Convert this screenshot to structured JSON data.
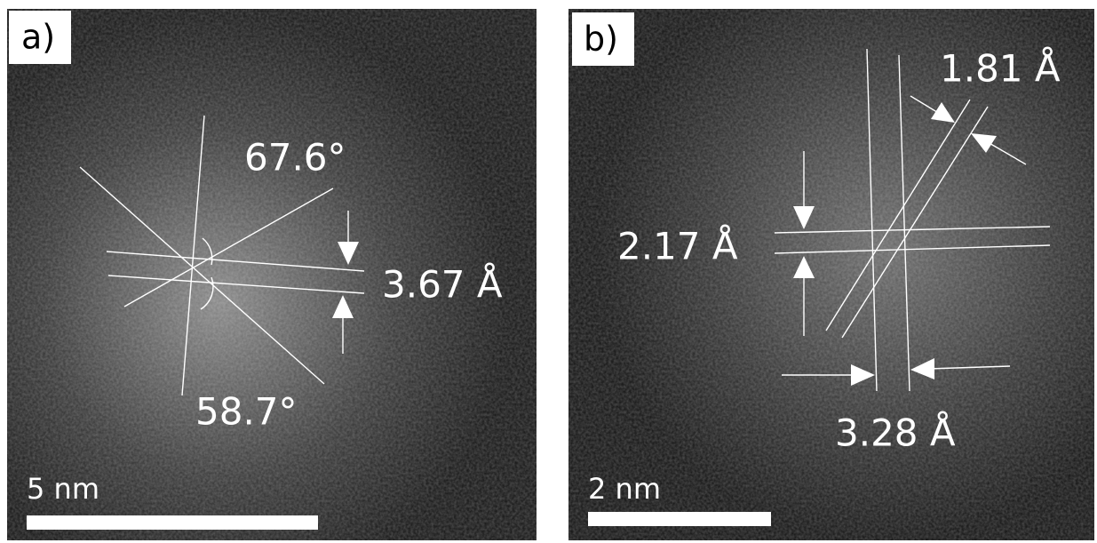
{
  "panels": [
    {
      "label": "a)",
      "annotations": [
        "67.6°",
        "3.67 Å",
        "58.7°"
      ],
      "scale_bar": "5 nm"
    },
    {
      "label": "b)",
      "annotations": [
        "1.81 Å",
        "2.17 Å",
        "3.28 Å"
      ],
      "scale_bar": "2 nm"
    }
  ]
}
